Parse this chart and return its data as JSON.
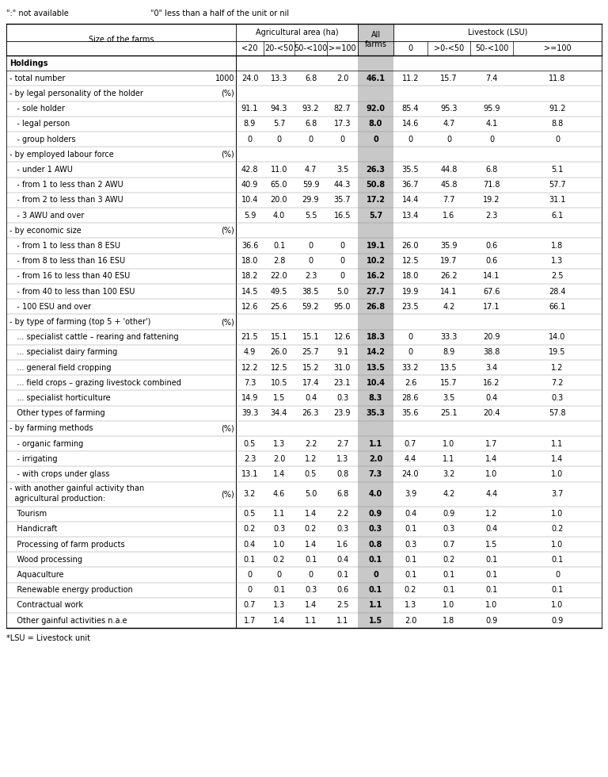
{
  "top_note1": "\":\" not available",
  "top_note2": "\"0\" less than a half of the unit or nil",
  "bottom_note": "*LSU = Livestock unit",
  "rows": [
    {
      "label": "Holdings",
      "indent": 0,
      "unit": "",
      "bold_label": true,
      "values": [
        "",
        "",
        "",
        "",
        "",
        "",
        "",
        "",
        ""
      ]
    },
    {
      "label": "- total number",
      "indent": 0,
      "unit": "1000",
      "bold_label": false,
      "values": [
        "24.0",
        "13.3",
        "6.8",
        "2.0",
        "46.1",
        "11.2",
        "15.7",
        "7.4",
        "11.8"
      ]
    },
    {
      "label": "- by legal personality of the holder",
      "indent": 0,
      "unit": "(%)",
      "bold_label": false,
      "values": [
        "",
        "",
        "",
        "",
        "",
        "",
        "",
        "",
        ""
      ]
    },
    {
      "label": "   - sole holder",
      "indent": 0,
      "unit": "",
      "bold_label": false,
      "values": [
        "91.1",
        "94.3",
        "93.2",
        "82.7",
        "92.0",
        "85.4",
        "95.3",
        "95.9",
        "91.2"
      ]
    },
    {
      "label": "   - legal person",
      "indent": 0,
      "unit": "",
      "bold_label": false,
      "values": [
        "8.9",
        "5.7",
        "6.8",
        "17.3",
        "8.0",
        "14.6",
        "4.7",
        "4.1",
        "8.8"
      ]
    },
    {
      "label": "   - group holders",
      "indent": 0,
      "unit": "",
      "bold_label": false,
      "values": [
        "0",
        "0",
        "0",
        "0",
        "0",
        "0",
        "0",
        "0",
        "0"
      ]
    },
    {
      "label": "- by employed labour force",
      "indent": 0,
      "unit": "(%)",
      "bold_label": false,
      "values": [
        "",
        "",
        "",
        "",
        "",
        "",
        "",
        "",
        ""
      ]
    },
    {
      "label": "   - under 1 AWU",
      "indent": 0,
      "unit": "",
      "bold_label": false,
      "values": [
        "42.8",
        "11.0",
        "4.7",
        "3.5",
        "26.3",
        "35.5",
        "44.8",
        "6.8",
        "5.1"
      ]
    },
    {
      "label": "   - from 1 to less than 2 AWU",
      "indent": 0,
      "unit": "",
      "bold_label": false,
      "values": [
        "40.9",
        "65.0",
        "59.9",
        "44.3",
        "50.8",
        "36.7",
        "45.8",
        "71.8",
        "57.7"
      ]
    },
    {
      "label": "   - from 2 to less than 3 AWU",
      "indent": 0,
      "unit": "",
      "bold_label": false,
      "values": [
        "10.4",
        "20.0",
        "29.9",
        "35.7",
        "17.2",
        "14.4",
        "7.7",
        "19.2",
        "31.1"
      ]
    },
    {
      "label": "   - 3 AWU and over",
      "indent": 0,
      "unit": "",
      "bold_label": false,
      "values": [
        "5.9",
        "4.0",
        "5.5",
        "16.5",
        "5.7",
        "13.4",
        "1.6",
        "2.3",
        "6.1"
      ]
    },
    {
      "label": "- by economic size",
      "indent": 0,
      "unit": "(%)",
      "bold_label": false,
      "values": [
        "",
        "",
        "",
        "",
        "",
        "",
        "",
        "",
        ""
      ]
    },
    {
      "label": "   - from 1 to less than 8 ESU",
      "indent": 0,
      "unit": "",
      "bold_label": false,
      "values": [
        "36.6",
        "0.1",
        "0",
        "0",
        "19.1",
        "26.0",
        "35.9",
        "0.6",
        "1.8"
      ]
    },
    {
      "label": "   - from 8 to less than 16 ESU",
      "indent": 0,
      "unit": "",
      "bold_label": false,
      "values": [
        "18.0",
        "2.8",
        "0",
        "0",
        "10.2",
        "12.5",
        "19.7",
        "0.6",
        "1.3"
      ]
    },
    {
      "label": "   - from 16 to less than 40 ESU",
      "indent": 0,
      "unit": "",
      "bold_label": false,
      "values": [
        "18.2",
        "22.0",
        "2.3",
        "0",
        "16.2",
        "18.0",
        "26.2",
        "14.1",
        "2.5"
      ]
    },
    {
      "label": "   - from 40 to less than 100 ESU",
      "indent": 0,
      "unit": "",
      "bold_label": false,
      "values": [
        "14.5",
        "49.5",
        "38.5",
        "5.0",
        "27.7",
        "19.9",
        "14.1",
        "67.6",
        "28.4"
      ]
    },
    {
      "label": "   - 100 ESU and over",
      "indent": 0,
      "unit": "",
      "bold_label": false,
      "values": [
        "12.6",
        "25.6",
        "59.2",
        "95.0",
        "26.8",
        "23.5",
        "4.2",
        "17.1",
        "66.1"
      ]
    },
    {
      "label": "- by type of farming (top 5 + 'other')",
      "indent": 0,
      "unit": "(%)",
      "bold_label": false,
      "values": [
        "",
        "",
        "",
        "",
        "",
        "",
        "",
        "",
        ""
      ]
    },
    {
      "label": "   ... specialist cattle – rearing and fattening",
      "indent": 0,
      "unit": "",
      "bold_label": false,
      "values": [
        "21.5",
        "15.1",
        "15.1",
        "12.6",
        "18.3",
        "0",
        "33.3",
        "20.9",
        "14.0"
      ]
    },
    {
      "label": "   ... specialist dairy farming",
      "indent": 0,
      "unit": "",
      "bold_label": false,
      "values": [
        "4.9",
        "26.0",
        "25.7",
        "9.1",
        "14.2",
        "0",
        "8.9",
        "38.8",
        "19.5"
      ]
    },
    {
      "label": "   ... general field cropping",
      "indent": 0,
      "unit": "",
      "bold_label": false,
      "values": [
        "12.2",
        "12.5",
        "15.2",
        "31.0",
        "13.5",
        "33.2",
        "13.5",
        "3.4",
        "1.2"
      ]
    },
    {
      "label": "   ... field crops – grazing livestock combined",
      "indent": 0,
      "unit": "",
      "bold_label": false,
      "values": [
        "7.3",
        "10.5",
        "17.4",
        "23.1",
        "10.4",
        "2.6",
        "15.7",
        "16.2",
        "7.2"
      ]
    },
    {
      "label": "   ... specialist horticulture",
      "indent": 0,
      "unit": "",
      "bold_label": false,
      "values": [
        "14.9",
        "1.5",
        "0.4",
        "0.3",
        "8.3",
        "28.6",
        "3.5",
        "0.4",
        "0.3"
      ]
    },
    {
      "label": "   Other types of farming",
      "indent": 0,
      "unit": "",
      "bold_label": false,
      "values": [
        "39.3",
        "34.4",
        "26.3",
        "23.9",
        "35.3",
        "35.6",
        "25.1",
        "20.4",
        "57.8"
      ]
    },
    {
      "label": "- by farming methods",
      "indent": 0,
      "unit": "(%)",
      "bold_label": false,
      "values": [
        "",
        "",
        "",
        "",
        "",
        "",
        "",
        "",
        ""
      ]
    },
    {
      "label": "   - organic farming",
      "indent": 0,
      "unit": "",
      "bold_label": false,
      "values": [
        "0.5",
        "1.3",
        "2.2",
        "2.7",
        "1.1",
        "0.7",
        "1.0",
        "1.7",
        "1.1"
      ]
    },
    {
      "label": "   - irrigating",
      "indent": 0,
      "unit": "",
      "bold_label": false,
      "values": [
        "2.3",
        "2.0",
        "1.2",
        "1.3",
        "2.0",
        "4.4",
        "1.1",
        "1.4",
        "1.4"
      ]
    },
    {
      "label": "   - with crops under glass",
      "indent": 0,
      "unit": "",
      "bold_label": false,
      "values": [
        "13.1",
        "1.4",
        "0.5",
        "0.8",
        "7.3",
        "24.0",
        "3.2",
        "1.0",
        "1.0"
      ]
    },
    {
      "label": "- with another gainful activity than\n  agricultural production:",
      "indent": 0,
      "unit": "(%)",
      "bold_label": false,
      "values": [
        "3.2",
        "4.6",
        "5.0",
        "6.8",
        "4.0",
        "3.9",
        "4.2",
        "4.4",
        "3.7"
      ]
    },
    {
      "label": "   Tourism",
      "indent": 0,
      "unit": "",
      "bold_label": false,
      "values": [
        "0.5",
        "1.1",
        "1.4",
        "2.2",
        "0.9",
        "0.4",
        "0.9",
        "1.2",
        "1.0"
      ]
    },
    {
      "label": "   Handicraft",
      "indent": 0,
      "unit": "",
      "bold_label": false,
      "values": [
        "0.2",
        "0.3",
        "0.2",
        "0.3",
        "0.3",
        "0.1",
        "0.3",
        "0.4",
        "0.2"
      ]
    },
    {
      "label": "   Processing of farm products",
      "indent": 0,
      "unit": "",
      "bold_label": false,
      "values": [
        "0.4",
        "1.0",
        "1.4",
        "1.6",
        "0.8",
        "0.3",
        "0.7",
        "1.5",
        "1.0"
      ]
    },
    {
      "label": "   Wood processing",
      "indent": 0,
      "unit": "",
      "bold_label": false,
      "values": [
        "0.1",
        "0.2",
        "0.1",
        "0.4",
        "0.1",
        "0.1",
        "0.2",
        "0.1",
        "0.1"
      ]
    },
    {
      "label": "   Aquaculture",
      "indent": 0,
      "unit": "",
      "bold_label": false,
      "values": [
        "0",
        "0",
        "0",
        "0.1",
        "0",
        "0.1",
        "0.1",
        "0.1",
        "0"
      ]
    },
    {
      "label": "   Renewable energy production",
      "indent": 0,
      "unit": "",
      "bold_label": false,
      "values": [
        "0",
        "0.1",
        "0.3",
        "0.6",
        "0.1",
        "0.2",
        "0.1",
        "0.1",
        "0.1"
      ]
    },
    {
      "label": "   Contractual work",
      "indent": 0,
      "unit": "",
      "bold_label": false,
      "values": [
        "0.7",
        "1.3",
        "1.4",
        "2.5",
        "1.1",
        "1.3",
        "1.0",
        "1.0",
        "1.0"
      ]
    },
    {
      "label": "   Other gainful activities n.a.e",
      "indent": 0,
      "unit": "",
      "bold_label": false,
      "values": [
        "1.7",
        "1.4",
        "1.1",
        "1.1",
        "1.5",
        "2.0",
        "1.8",
        "0.9",
        "0.9"
      ]
    }
  ],
  "highlight_color": "#c8c8c8",
  "font_size": 7.0
}
